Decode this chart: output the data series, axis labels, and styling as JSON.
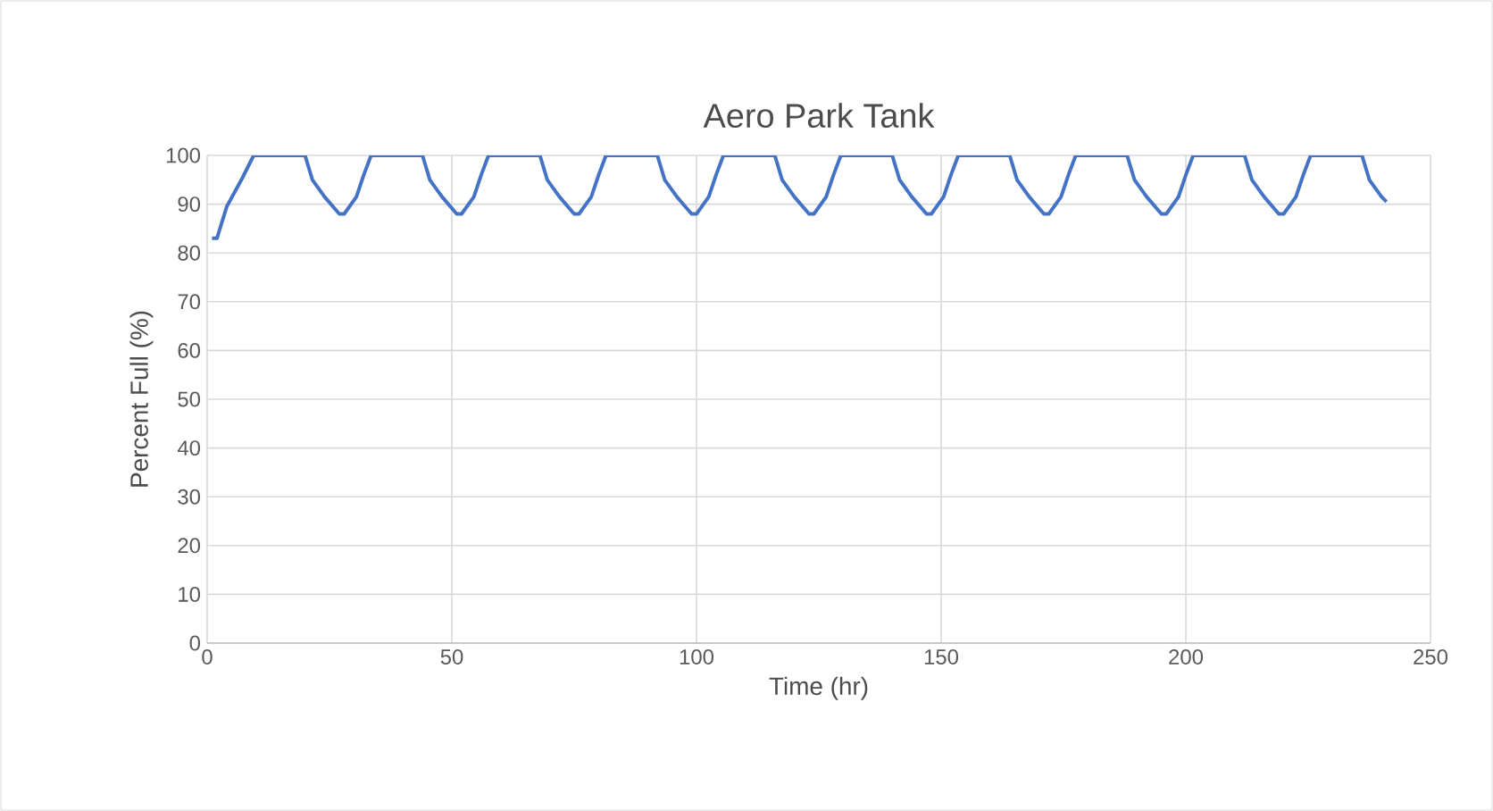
{
  "chart_data": {
    "type": "line",
    "title": "Aero Park Tank",
    "xlabel": "Time (hr)",
    "ylabel": "Percent Full (%)",
    "xlim": [
      0,
      250
    ],
    "xticks": [
      0,
      50,
      100,
      150,
      200,
      250
    ],
    "ylim": [
      0,
      100
    ],
    "yticks": [
      0,
      10,
      20,
      30,
      40,
      50,
      60,
      70,
      80,
      90,
      100
    ],
    "grid": true,
    "marker": "none",
    "line_style": "solid",
    "series": [
      {
        "color": "#4472c4",
        "x": [
          1,
          2,
          4,
          7,
          9.5,
          20,
          21.5,
          24,
          27,
          28,
          30.5,
          32,
          33.5,
          44,
          45.5,
          48,
          51,
          52,
          54.5,
          56,
          57.5,
          68,
          69.5,
          72,
          75,
          76,
          78.5,
          80,
          81.5,
          92,
          93.5,
          96,
          99,
          100,
          102.5,
          104,
          105.5,
          116,
          117.5,
          120,
          123,
          124,
          126.5,
          128,
          129.5,
          140,
          141.5,
          144,
          147,
          148,
          150.5,
          152,
          153.5,
          164,
          165.5,
          168,
          171,
          172,
          174.5,
          176,
          177.5,
          188,
          189.5,
          192,
          195,
          196,
          198.5,
          200,
          201.5,
          212,
          213.5,
          216,
          219,
          220,
          222.5,
          224,
          225.5,
          236,
          237.5,
          240,
          241
        ],
        "values": [
          83,
          83,
          89.5,
          95,
          100,
          100,
          95,
          91.5,
          88,
          88,
          91.5,
          96,
          100,
          100,
          95,
          91.5,
          88,
          88,
          91.5,
          96,
          100,
          100,
          95,
          91.5,
          88,
          88,
          91.5,
          96,
          100,
          100,
          95,
          91.5,
          88,
          88,
          91.5,
          96,
          100,
          100,
          95,
          91.5,
          88,
          88,
          91.5,
          96,
          100,
          100,
          95,
          91.5,
          88,
          88,
          91.5,
          96,
          100,
          100,
          95,
          91.5,
          88,
          88,
          91.5,
          96,
          100,
          100,
          95,
          91.5,
          88,
          88,
          91.5,
          96,
          100,
          100,
          95,
          91.5,
          88,
          88,
          91.5,
          96,
          100,
          100,
          95,
          91.5,
          90.5
        ]
      }
    ]
  }
}
